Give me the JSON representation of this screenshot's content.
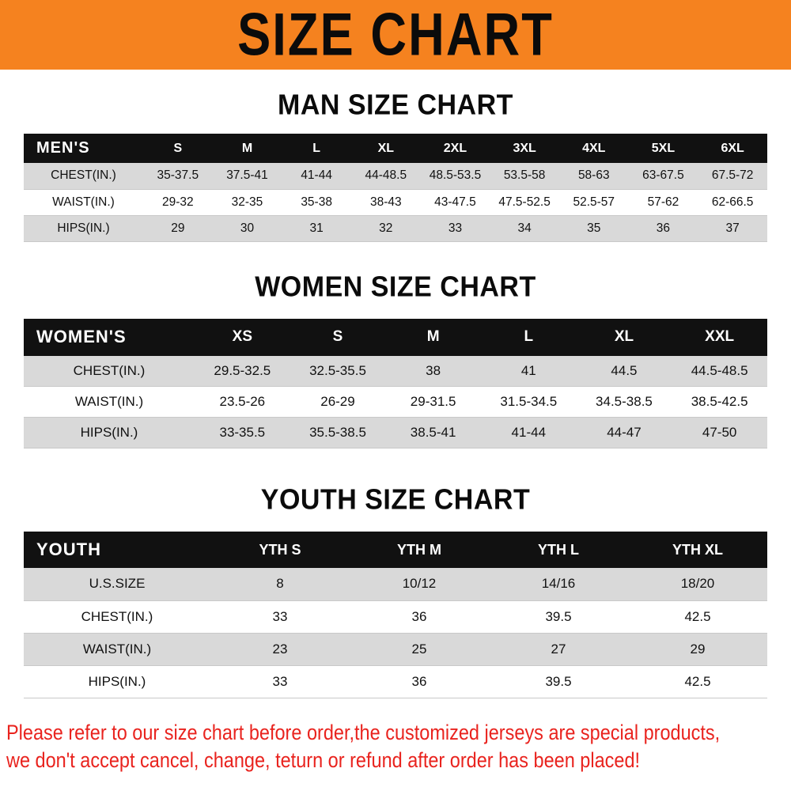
{
  "banner": {
    "title": "SIZE CHART"
  },
  "colors": {
    "banner_bg": "#F5821F",
    "table_header_bg": "#111111",
    "table_header_text": "#FFFFFF",
    "row_alt_bg": "#D9D9D9",
    "footer_text": "#E9231E"
  },
  "sections": [
    {
      "heading": "MAN SIZE CHART",
      "table": {
        "header": [
          "MEN'S",
          "S",
          "M",
          "L",
          "XL",
          "2XL",
          "3XL",
          "4XL",
          "5XL",
          "6XL"
        ],
        "rows": [
          {
            "label": "CHEST(IN.)",
            "values": [
              "35-37.5",
              "37.5-41",
              "41-44",
              "44-48.5",
              "48.5-53.5",
              "53.5-58",
              "58-63",
              "63-67.5",
              "67.5-72"
            ]
          },
          {
            "label": "WAIST(IN.)",
            "values": [
              "29-32",
              "32-35",
              "35-38",
              "38-43",
              "43-47.5",
              "47.5-52.5",
              "52.5-57",
              "57-62",
              "62-66.5"
            ]
          },
          {
            "label": "HIPS(IN.)",
            "values": [
              "29",
              "30",
              "31",
              "32",
              "33",
              "34",
              "35",
              "36",
              "37"
            ]
          }
        ]
      }
    },
    {
      "heading": "WOMEN SIZE CHART",
      "table": {
        "header": [
          "WOMEN'S",
          "XS",
          "S",
          "M",
          "L",
          "XL",
          "XXL"
        ],
        "rows": [
          {
            "label": "CHEST(IN.)",
            "values": [
              "29.5-32.5",
              "32.5-35.5",
              "38",
              "41",
              "44.5",
              "44.5-48.5"
            ]
          },
          {
            "label": "WAIST(IN.)",
            "values": [
              "23.5-26",
              "26-29",
              "29-31.5",
              "31.5-34.5",
              "34.5-38.5",
              "38.5-42.5"
            ]
          },
          {
            "label": "HIPS(IN.)",
            "values": [
              "33-35.5",
              "35.5-38.5",
              "38.5-41",
              "41-44",
              "44-47",
              "47-50"
            ]
          }
        ]
      }
    },
    {
      "heading": "YOUTH SIZE CHART",
      "table": {
        "header": [
          "YOUTH",
          "YTH S",
          "YTH M",
          "YTH L",
          "YTH XL"
        ],
        "rows": [
          {
            "label": "U.S.SIZE",
            "values": [
              "8",
              "10/12",
              "14/16",
              "18/20"
            ]
          },
          {
            "label": "CHEST(IN.)",
            "values": [
              "33",
              "36",
              "39.5",
              "42.5"
            ]
          },
          {
            "label": "WAIST(IN.)",
            "values": [
              "23",
              "25",
              "27",
              "29"
            ]
          },
          {
            "label": "HIPS(IN.)",
            "values": [
              "33",
              "36",
              "39.5",
              "42.5"
            ]
          }
        ]
      }
    }
  ],
  "footer": {
    "lines": [
      "Please refer to our size chart before order,the customized jerseys are special products,",
      "we don't accept cancel, change, teturn or refund after order has been placed!"
    ]
  }
}
